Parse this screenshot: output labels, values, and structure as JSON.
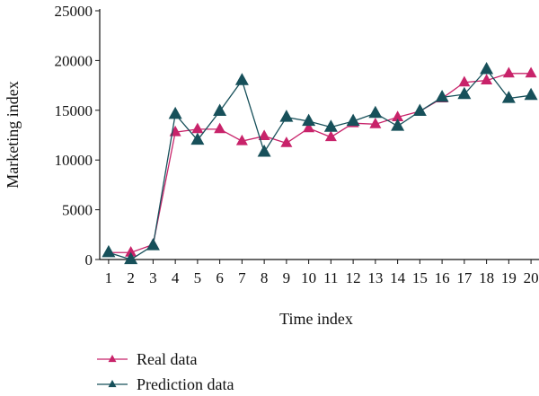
{
  "chart_data": {
    "type": "line",
    "xlabel": "Time index",
    "ylabel": "Marketing index",
    "x": [
      1,
      2,
      3,
      4,
      5,
      6,
      7,
      8,
      9,
      10,
      11,
      12,
      13,
      14,
      15,
      16,
      17,
      18,
      19,
      20
    ],
    "xlim": [
      0.6,
      20.4
    ],
    "ylim": [
      0,
      25000
    ],
    "yticks": [
      0,
      5000,
      10000,
      15000,
      20000,
      25000
    ],
    "grid": false,
    "legend_position": "bottom-left",
    "series": [
      {
        "name": "Real data",
        "color": "#c8236a",
        "marker": "triangle",
        "values": [
          700,
          700,
          1500,
          12800,
          13100,
          13100,
          11900,
          12400,
          11700,
          13200,
          12300,
          13700,
          13600,
          14300,
          14900,
          16200,
          17800,
          18000,
          18700,
          18700
        ]
      },
      {
        "name": "Prediction data",
        "color": "#17505a",
        "marker": "triangle",
        "values": [
          700,
          0,
          1400,
          14600,
          12000,
          14900,
          18000,
          10800,
          14300,
          13900,
          13300,
          13900,
          14700,
          13400,
          14900,
          16300,
          16600,
          19100,
          16200,
          16500
        ]
      }
    ]
  }
}
